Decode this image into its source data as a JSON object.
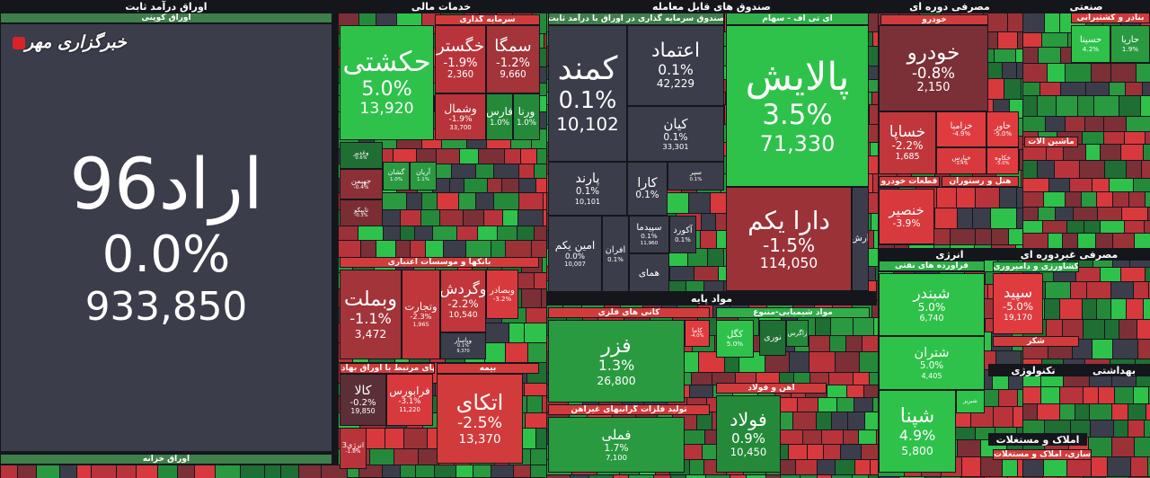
{
  "watermark": "خبرگزاری مهر",
  "sections": [
    {
      "text": "اوراق درآمد ثابت"
    },
    {
      "text": "خدمات مالی"
    },
    {
      "text": "صندوق های قابل معامله"
    },
    {
      "text": "مصرفی دوره ای"
    },
    {
      "text": "صنعتی"
    },
    {
      "text": "مواد پایه"
    },
    {
      "text": "انرژی"
    },
    {
      "text": "مصرفی غیردوره ای"
    },
    {
      "text": "تکنولوژی"
    },
    {
      "text": "بهداشتی"
    },
    {
      "text": "املاک و مستغلات"
    }
  ],
  "groups": [
    {
      "text": "اوراق کوپنی",
      "color": "#3f7f4c"
    },
    {
      "text": "اوراق خزانه",
      "color": "#3f7f4c"
    },
    {
      "text": "سرمایه گذاری",
      "color": "#d23b3b"
    },
    {
      "text": "بانکها و موسسات اعتباری",
      "color": "#d23b3b"
    },
    {
      "text": "تهای مرتبط با اوراق بهادار",
      "color": "#d23b3b"
    },
    {
      "text": "بیمه",
      "color": "#d23b3b"
    },
    {
      "text": "صندوق سرمایه گذاری در اوراق با درآمد ثابت",
      "color": "#3f7f4c"
    },
    {
      "text": "ای تی اف - سهام",
      "color": "#2fae4a"
    },
    {
      "text": "کانی های فلزی",
      "color": "#d23b3b"
    },
    {
      "text": "تولید فلزات گرانبهای غیرآهن",
      "color": "#d23b3b"
    },
    {
      "text": "مواد شیمیایی-متنوع",
      "color": "#2fae4a"
    },
    {
      "text": "اهن و فولاد",
      "color": "#d23b3b"
    },
    {
      "text": "خودرو",
      "color": "#d23b3b"
    },
    {
      "text": "قطعات خودرو",
      "color": "#d23b3b"
    },
    {
      "text": "هتل و رستوران",
      "color": "#d23b3b"
    },
    {
      "text": "فراورده های نفتی",
      "color": "#2fae4a"
    },
    {
      "text": "بنادر و کشتیرانی",
      "color": "#d23b3b"
    },
    {
      "text": "ماشین آلات",
      "color": "#d23b3b"
    },
    {
      "text": "کشاورزی و دامپروری",
      "color": "#2fae4a"
    },
    {
      "text": "شکر",
      "color": "#d23b3b"
    },
    {
      "text": "سازی، املاک و مستغلات",
      "color": "#d23b3b"
    }
  ],
  "tiles": [
    {
      "name": "اراد96",
      "change": "0.0%",
      "volume": "933,850",
      "color": "#3b3d4a"
    },
    {
      "name": "حکشتی",
      "change": "5.0%",
      "volume": "13,920",
      "color": "#2ec24a"
    },
    {
      "name": "خگستر",
      "change": "-1.9%",
      "volume": "2,360",
      "color": "#b8343a"
    },
    {
      "name": "سمگا",
      "change": "-1.2%",
      "volume": "9,660",
      "color": "#a2343a"
    },
    {
      "name": "وشمال",
      "change": "-1.9%",
      "volume": "33,700",
      "color": "#b8343a"
    },
    {
      "name": "فارس",
      "change": "1.0%",
      "color": "#248a3a"
    },
    {
      "name": "ورنا",
      "change": "1.0%",
      "color": "#248a3a"
    },
    {
      "name": "وغدیر",
      "change": "0.6%",
      "color": "#1f6e33"
    },
    {
      "name": "جهبمن",
      "change": "-0.4%",
      "color": "#8a3036"
    },
    {
      "name": "گشان",
      "change": "1.0%",
      "color": "#2a9a40"
    },
    {
      "name": "آریان",
      "change": "1.1%",
      "color": "#2a9a40"
    },
    {
      "name": "تاپیکو",
      "change": "-0.3%",
      "color": "#7a2e34"
    },
    {
      "name": "وبملت",
      "change": "-1.1%",
      "volume": "3,472",
      "color": "#a2343a"
    },
    {
      "name": "وتجارت",
      "change": "-2.3%",
      "volume": "1,965",
      "color": "#c0363b"
    },
    {
      "name": "وگردش",
      "change": "-2.2%",
      "volume": "10,540",
      "color": "#c0363b"
    },
    {
      "name": "وبصادر",
      "change": "-3.2%",
      "color": "#d8393d"
    },
    {
      "name": "وپاسار",
      "change": "0.1%",
      "volume": "9,370",
      "color": "#3b3d4a"
    },
    {
      "name": "کالا",
      "change": "-0.2%",
      "volume": "19,850",
      "color": "#5a2f36"
    },
    {
      "name": "فرابورس",
      "change": "-3.1%",
      "volume": "11,220",
      "color": "#d8393d"
    },
    {
      "name": "انرژی3",
      "change": "-1.8%",
      "color": "#b8343a"
    },
    {
      "name": "اتکای",
      "change": "-2.5%",
      "volume": "13,370",
      "color": "#d23b3b"
    },
    {
      "name": "کمند",
      "change": "0.1%",
      "volume": "10,102",
      "color": "#3b3d4a"
    },
    {
      "name": "اعتماد",
      "change": "0.1%",
      "volume": "42,229",
      "color": "#3b3d4a"
    },
    {
      "name": "کیان",
      "change": "0.1%",
      "volume": "33,301",
      "color": "#3b3d4a"
    },
    {
      "name": "پارند",
      "change": "0.1%",
      "volume": "10,101",
      "color": "#3b3d4a"
    },
    {
      "name": "کارا",
      "change": "0.1%",
      "color": "#3b3d4a"
    },
    {
      "name": "سپر",
      "change": "0.1%",
      "color": "#3b3d4a"
    },
    {
      "name": "امین یکم",
      "change": "0.0%",
      "volume": "10,007",
      "color": "#3b3d4a"
    },
    {
      "name": "افران",
      "change": "0.1%",
      "color": "#3b3d4a"
    },
    {
      "name": "سپیدما",
      "change": "0.1%",
      "volume": "11,960",
      "color": "#3b3d4a"
    },
    {
      "name": "آکورد",
      "change": "0.1%",
      "color": "#3b3d4a"
    },
    {
      "name": "همای",
      "color": "#3b3d4a"
    },
    {
      "name": "پالایش",
      "change": "3.5%",
      "volume": "71,330",
      "color": "#2ec24a"
    },
    {
      "name": "دارا یکم",
      "change": "-1.5%",
      "volume": "114,050",
      "color": "#9a3238"
    },
    {
      "name": "ارش",
      "color": "#3b3d4a"
    },
    {
      "name": "فزر",
      "change": "1.3%",
      "volume": "26,800",
      "color": "#2a9a40"
    },
    {
      "name": "کاما",
      "change": "-4.0%",
      "color": "#e03c3f"
    },
    {
      "name": "فملی",
      "change": "1.7%",
      "volume": "7,100",
      "color": "#2a9a40"
    },
    {
      "name": "کگل",
      "change": "5.0%",
      "color": "#2ec24a"
    },
    {
      "name": "نوری",
      "color": "#1f6e33"
    },
    {
      "name": "زاگرس",
      "color": "#248a3a"
    },
    {
      "name": "فولاد",
      "change": "0.9%",
      "volume": "10,450",
      "color": "#248a3a"
    },
    {
      "name": "خودرو",
      "change": "-0.8%",
      "volume": "2,150",
      "color": "#7a3036"
    },
    {
      "name": "خساپا",
      "change": "-2.2%",
      "volume": "1,685",
      "color": "#c0363b"
    },
    {
      "name": "خزامیا",
      "change": "-4.9%",
      "color": "#e03c3f"
    },
    {
      "name": "خاور",
      "change": "-5.0%",
      "color": "#e03c3f"
    },
    {
      "name": "خپارس",
      "change": "-3.4%",
      "color": "#d8393d"
    },
    {
      "name": "خکاوه",
      "change": "-5.0%",
      "color": "#e03c3f"
    },
    {
      "name": "خنصیر",
      "change": "-3.9%",
      "color": "#d8393d"
    },
    {
      "name": "شبندر",
      "change": "5.0%",
      "volume": "6,740",
      "color": "#2ec24a"
    },
    {
      "name": "شتران",
      "change": "5.0%",
      "volume": "4,405",
      "color": "#2ec24a"
    },
    {
      "name": "شپنا",
      "change": "4.9%",
      "volume": "5,800",
      "color": "#2ec24a"
    },
    {
      "name": "شبریز",
      "color": "#2ec24a"
    },
    {
      "name": "حسینا",
      "change": "4.2%",
      "color": "#2ec24a"
    },
    {
      "name": "حاریا",
      "change": "1.9%",
      "color": "#2a9a40"
    },
    {
      "name": "سپید",
      "change": "-5.0%",
      "volume": "19,170",
      "color": "#e03c3f"
    }
  ]
}
